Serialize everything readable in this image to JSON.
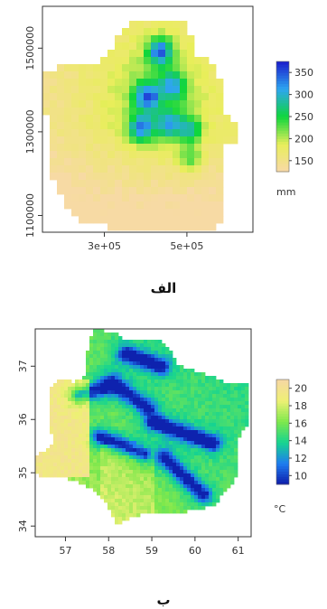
{
  "figure": {
    "caption_a": "الف",
    "caption_b": "ب"
  },
  "chart_data": [
    {
      "type": "heatmap",
      "panel": "الف",
      "title": "",
      "xlabel": "",
      "ylabel": "",
      "x_ticks": [
        "3e+05",
        "5e+05"
      ],
      "x_tick_values": [
        300000,
        500000
      ],
      "y_ticks": [
        "1100000",
        "1300000",
        "1500000"
      ],
      "y_tick_values": [
        1100000,
        1300000,
        1500000
      ],
      "xlim": [
        150000,
        660000
      ],
      "ylim": [
        1060000,
        1600000
      ],
      "legend": {
        "title": "mm",
        "placement": "right",
        "ticks": [
          150,
          200,
          250,
          300,
          350
        ],
        "range": [
          125,
          375
        ],
        "colors": [
          "#f8d9a8",
          "#e8ee5a",
          "#10d63c",
          "#2ea6f0",
          "#1a1dcc"
        ]
      },
      "grid": false
    },
    {
      "type": "heatmap",
      "panel": "ب",
      "title": "",
      "xlabel": "",
      "ylabel": "",
      "x_ticks": [
        "57",
        "58",
        "59",
        "60",
        "61"
      ],
      "x_tick_values": [
        57,
        58,
        59,
        60,
        61
      ],
      "y_ticks": [
        "34",
        "35",
        "36",
        "37"
      ],
      "y_tick_values": [
        34,
        35,
        36,
        37
      ],
      "xlim": [
        56.3,
        61.3
      ],
      "ylim": [
        33.8,
        37.7
      ],
      "legend": {
        "title": "°C",
        "placement": "right",
        "ticks": [
          10,
          12,
          14,
          16,
          18,
          20
        ],
        "range": [
          9,
          21
        ],
        "colors": [
          "#0d1aa8",
          "#1e7df0",
          "#16d490",
          "#7fe84c",
          "#eef074",
          "#f6d7a4"
        ]
      },
      "grid": false
    }
  ]
}
